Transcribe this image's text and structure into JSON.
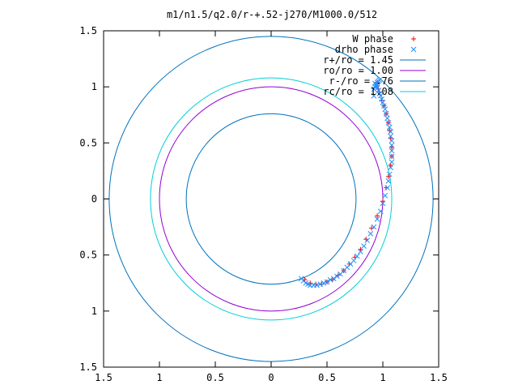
{
  "chart_data": {
    "type": "scatter",
    "title": "m1/n1.5/q2.0/r-+.52-j270/M1000.0/512",
    "xlim": [
      -1.5,
      1.5
    ],
    "ylim": [
      -1.5,
      1.5
    ],
    "x_ticks": [
      -1.5,
      -1,
      -0.5,
      0,
      0.5,
      1,
      1.5
    ],
    "y_ticks": [
      -1.5,
      -1,
      -0.5,
      0,
      0.5,
      1,
      1.5
    ],
    "x_tick_labels": [
      "1.5",
      "1",
      "0.5",
      "0",
      "0.5",
      "1",
      "1.5"
    ],
    "y_tick_labels": [
      "1.5",
      "1",
      "0.5",
      "0",
      "0.5",
      "1",
      "1.5"
    ],
    "grid": false,
    "legend_position": "top-right",
    "series": [
      {
        "name": "W phase",
        "kind": "points",
        "marker": "plus",
        "color": "#ff0000",
        "x": [
          0.3,
          0.35,
          0.4,
          0.45,
          0.5,
          0.55,
          0.6,
          0.65,
          0.7,
          0.75,
          0.8,
          0.85,
          0.9,
          0.95,
          1.0,
          1.03,
          1.05,
          1.07,
          1.08,
          1.08,
          1.07,
          1.06,
          1.05,
          1.03,
          1.01,
          0.99,
          0.97,
          0.96,
          0.95,
          0.95
        ],
        "y": [
          -0.72,
          -0.75,
          -0.76,
          -0.76,
          -0.74,
          -0.72,
          -0.68,
          -0.64,
          -0.58,
          -0.52,
          -0.45,
          -0.36,
          -0.26,
          -0.15,
          -0.02,
          0.1,
          0.2,
          0.3,
          0.38,
          0.46,
          0.54,
          0.61,
          0.68,
          0.76,
          0.83,
          0.88,
          0.95,
          0.98,
          1.01,
          1.04
        ]
      },
      {
        "name": "drho phase",
        "kind": "points",
        "marker": "cross",
        "color": "#1e90ff",
        "x": [
          0.27,
          0.29,
          0.31,
          0.33,
          0.35,
          0.38,
          0.41,
          0.44,
          0.47,
          0.5,
          0.53,
          0.56,
          0.59,
          0.62,
          0.65,
          0.68,
          0.71,
          0.74,
          0.77,
          0.8,
          0.83,
          0.86,
          0.89,
          0.92,
          0.95,
          0.98,
          1.0,
          1.02,
          1.04,
          1.05,
          1.06,
          1.07,
          1.08,
          1.08,
          1.08,
          1.08,
          1.08,
          1.07,
          1.07,
          1.06,
          1.05,
          1.04,
          1.03,
          1.02,
          1.01,
          1.0,
          0.99,
          0.98,
          0.97,
          0.96,
          0.95,
          0.94,
          0.93,
          0.92,
          0.92,
          0.93,
          0.94,
          0.95,
          0.96,
          0.97
        ],
        "y": [
          -0.71,
          -0.73,
          -0.75,
          -0.76,
          -0.77,
          -0.77,
          -0.77,
          -0.76,
          -0.75,
          -0.74,
          -0.72,
          -0.71,
          -0.69,
          -0.67,
          -0.64,
          -0.61,
          -0.58,
          -0.55,
          -0.51,
          -0.47,
          -0.42,
          -0.37,
          -0.31,
          -0.25,
          -0.18,
          -0.11,
          -0.04,
          0.03,
          0.1,
          0.16,
          0.22,
          0.28,
          0.33,
          0.38,
          0.43,
          0.48,
          0.52,
          0.56,
          0.6,
          0.64,
          0.68,
          0.72,
          0.76,
          0.8,
          0.83,
          0.86,
          0.89,
          0.92,
          0.94,
          0.97,
          0.99,
          1.01,
          1.03,
          0.92,
          0.98,
          1.0,
          1.02,
          1.04,
          1.05,
          1.06
        ]
      },
      {
        "name": "r+/ro = 1.45",
        "kind": "circle",
        "radius": 1.45,
        "color": "#0072bd"
      },
      {
        "name": "ro/ro = 1.00",
        "kind": "circle",
        "radius": 1.0,
        "color": "#9400d3"
      },
      {
        "name": "r-/ro = .76",
        "kind": "circle",
        "radius": 0.76,
        "color": "#0072bd"
      },
      {
        "name": "rc/ro = 1.08",
        "kind": "circle",
        "radius": 1.08,
        "color": "#00d0d8"
      }
    ]
  }
}
